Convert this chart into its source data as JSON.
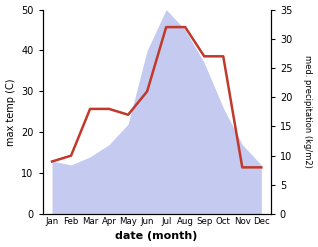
{
  "months": [
    "Jan",
    "Feb",
    "Mar",
    "Apr",
    "May",
    "Jun",
    "Jul",
    "Aug",
    "Sep",
    "Oct",
    "Nov",
    "Dec"
  ],
  "temperature": [
    13,
    12,
    14,
    17,
    22,
    40,
    50,
    45,
    37,
    26,
    17,
    12
  ],
  "precipitation": [
    9,
    10,
    18,
    18,
    17,
    21,
    32,
    32,
    27,
    27,
    8,
    8
  ],
  "temp_color": "#aab4e8",
  "precip_color": "#c0392b",
  "ylabel_left": "max temp (C)",
  "ylabel_right": "med. precipitation (kg/m2)",
  "xlabel": "date (month)",
  "ylim_left": [
    0,
    50
  ],
  "ylim_right": [
    0,
    35
  ],
  "yticks_left": [
    0,
    10,
    20,
    30,
    40,
    50
  ],
  "yticks_right": [
    0,
    5,
    10,
    15,
    20,
    25,
    30,
    35
  ],
  "fill_color": "#c5caf0",
  "background_color": "#ffffff"
}
